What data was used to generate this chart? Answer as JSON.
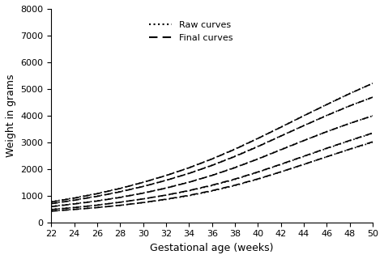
{
  "xlabel": "Gestational age (weeks)",
  "ylabel": "Weight in grams",
  "xlim": [
    22,
    50
  ],
  "ylim": [
    0,
    8000
  ],
  "xticks": [
    22,
    24,
    26,
    28,
    30,
    32,
    34,
    36,
    38,
    40,
    42,
    44,
    46,
    48,
    50
  ],
  "yticks": [
    0,
    1000,
    2000,
    3000,
    4000,
    5000,
    6000,
    7000,
    8000
  ],
  "background_color": "#ffffff",
  "line_color": "#000000",
  "legend_raw": "Raw curves",
  "legend_final": "Final curves",
  "percentiles": {
    "p3_raw": [
      430,
      490,
      560,
      640,
      740,
      860,
      1000,
      1175,
      1380,
      1620,
      1890,
      2170,
      2460,
      2740,
      3000
    ],
    "p10_raw": [
      490,
      560,
      650,
      760,
      880,
      1020,
      1185,
      1380,
      1610,
      1880,
      2170,
      2470,
      2770,
      3060,
      3340
    ],
    "p50_raw": [
      600,
      700,
      810,
      945,
      1100,
      1290,
      1510,
      1765,
      2060,
      2380,
      2730,
      3070,
      3400,
      3710,
      3990
    ],
    "p90_raw": [
      710,
      840,
      985,
      1155,
      1350,
      1580,
      1840,
      2140,
      2480,
      2850,
      3240,
      3630,
      4010,
      4370,
      4690
    ],
    "p97_raw": [
      775,
      920,
      1085,
      1280,
      1505,
      1760,
      2050,
      2380,
      2750,
      3150,
      3570,
      4000,
      4420,
      4830,
      5210
    ],
    "p3_final": [
      420,
      485,
      555,
      640,
      745,
      870,
      1015,
      1190,
      1395,
      1630,
      1895,
      2175,
      2460,
      2745,
      3020
    ],
    "p10_final": [
      480,
      555,
      645,
      755,
      880,
      1025,
      1195,
      1395,
      1625,
      1890,
      2180,
      2480,
      2780,
      3070,
      3350
    ],
    "p50_final": [
      590,
      690,
      800,
      935,
      1095,
      1285,
      1505,
      1760,
      2050,
      2375,
      2720,
      3065,
      3400,
      3710,
      3995
    ],
    "p90_final": [
      700,
      830,
      975,
      1145,
      1345,
      1575,
      1835,
      2135,
      2470,
      2840,
      3235,
      3625,
      4005,
      4365,
      4690
    ],
    "p97_final": [
      765,
      910,
      1075,
      1270,
      1500,
      1755,
      2045,
      2375,
      2740,
      3145,
      3565,
      3995,
      4415,
      4825,
      5210
    ]
  }
}
